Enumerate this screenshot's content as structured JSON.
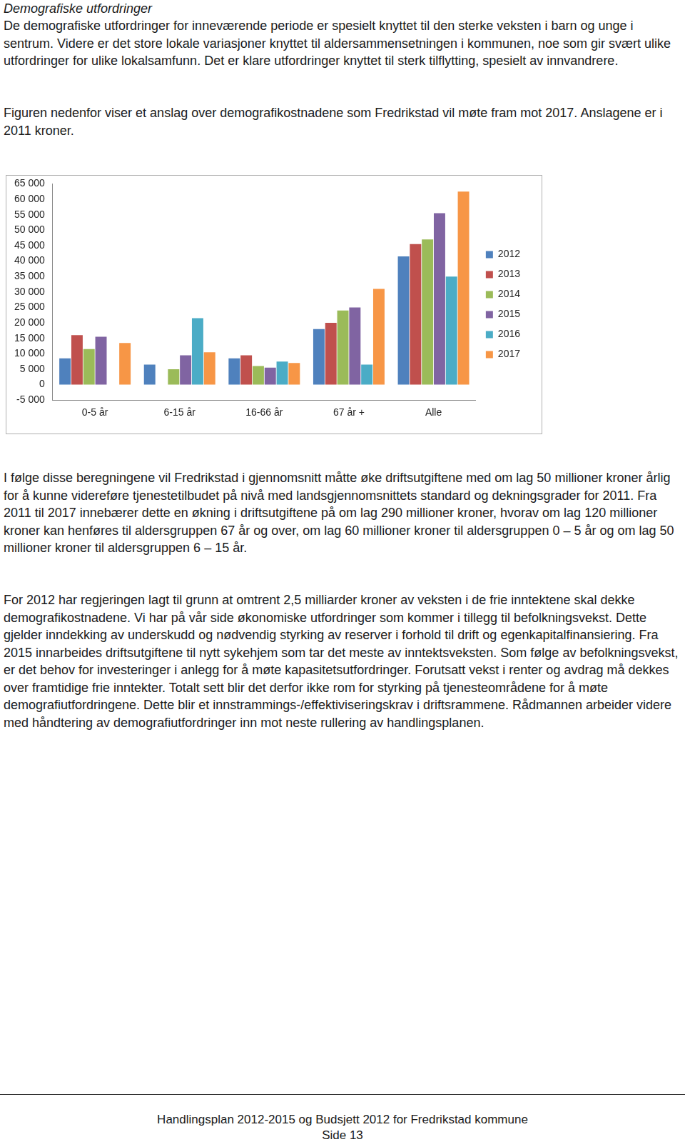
{
  "heading": "Demografiske utfordringer",
  "paragraphs_before": [
    "De demografiske utfordringer for inneværende periode er spesielt knyttet til den sterke veksten i barn og unge i sentrum. Videre er det store lokale variasjoner knyttet til aldersammensetningen i kommunen, noe som gir svært ulike utfordringer for ulike lokalsamfunn. Det er klare utfordringer knyttet til sterk tilflytting, spesielt av innvandrere.",
    "Figuren nedenfor viser et anslag over demografikostnadene som Fredrikstad vil møte fram mot 2017. Anslagene er i 2011 kroner."
  ],
  "chart_data": {
    "type": "bar",
    "categories": [
      "0-5 år",
      "6-15 år",
      "16-66 år",
      "67 år +",
      "Alle"
    ],
    "series": [
      {
        "name": "2012",
        "color": "#4f81bd",
        "values": [
          8500,
          6500,
          8500,
          18000,
          41500
        ]
      },
      {
        "name": "2013",
        "color": "#c0504d",
        "values": [
          16000,
          0,
          9500,
          20000,
          45500
        ]
      },
      {
        "name": "2014",
        "color": "#9bbb59",
        "values": [
          11500,
          5000,
          6000,
          24000,
          47000
        ]
      },
      {
        "name": "2015",
        "color": "#8064a2",
        "values": [
          15500,
          9500,
          5500,
          25000,
          55500
        ]
      },
      {
        "name": "2016",
        "color": "#4bacc6",
        "values": [
          0,
          21500,
          7500,
          6500,
          35000
        ]
      },
      {
        "name": "2017",
        "color": "#f79646",
        "values": [
          13500,
          10500,
          7000,
          31000,
          62500
        ]
      }
    ],
    "ylim": [
      -5000,
      65000
    ],
    "yticks": [
      {
        "value": -5000,
        "label": "-5 000"
      },
      0,
      {
        "value": 5000,
        "label": "5 000"
      },
      {
        "value": 10000,
        "label": "10 000"
      },
      {
        "value": 15000,
        "label": "15 000"
      },
      {
        "value": 20000,
        "label": "20 000"
      },
      {
        "value": 25000,
        "label": "25 000"
      },
      {
        "value": 30000,
        "label": "30 000"
      },
      {
        "value": 35000,
        "label": "35 000"
      },
      {
        "value": 40000,
        "label": "40 000"
      },
      {
        "value": 45000,
        "label": "45 000"
      },
      {
        "value": 50000,
        "label": "50 000"
      },
      {
        "value": 55000,
        "label": "55 000"
      },
      {
        "value": 60000,
        "label": "60 000"
      },
      {
        "value": 65000,
        "label": "65 000"
      }
    ],
    "grid": false,
    "legend": "right"
  },
  "paragraphs_after": [
    "I følge disse beregningene vil Fredrikstad i gjennomsnitt måtte øke driftsutgiftene med om lag 50 millioner kroner årlig for å kunne videreføre tjenestetilbudet på nivå med landsgjennomsnittets standard og dekningsgrader for 2011. Fra 2011 til 2017 innebærer dette en økning i driftsutgiftene på om lag 290 millioner kroner, hvorav om lag 120 millioner kroner kan henføres til aldersgruppen 67 år og over, om lag 60 millioner kroner til aldersgruppen 0 – 5 år og om lag 50 millioner kroner til aldersgruppen 6 – 15 år.",
    "For 2012 har regjeringen lagt til grunn at omtrent 2,5 milliarder kroner av veksten i de frie inntektene skal dekke demografikostnadene. Vi har på vår side økonomiske utfordringer som kommer i tillegg til befolkningsvekst. Dette gjelder inndekking av underskudd og nødvendig styrking av reserver i forhold til drift og egenkapitalfinansiering. Fra 2015 innarbeides driftsutgiftene til nytt sykehjem som tar det meste av inntektsveksten. Som følge av befolkningsvekst, er det behov for investeringer i anlegg for å møte kapasitetsutfordringer. Forutsatt vekst i renter og avdrag må dekkes over framtidige frie inntekter. Totalt sett blir det derfor ikke rom for styrking på tjenesteområdene for å møte demografiutfordringene. Dette blir et innstrammings-/effektiviseringskrav i driftsrammene. Rådmannen arbeider videre med håndtering av demografiutfordringer inn mot neste rullering av handlingsplanen."
  ],
  "footer": {
    "title": "Handlingsplan 2012-2015 og Budsjett 2012 for Fredrikstad kommune",
    "page": "Side 13"
  }
}
